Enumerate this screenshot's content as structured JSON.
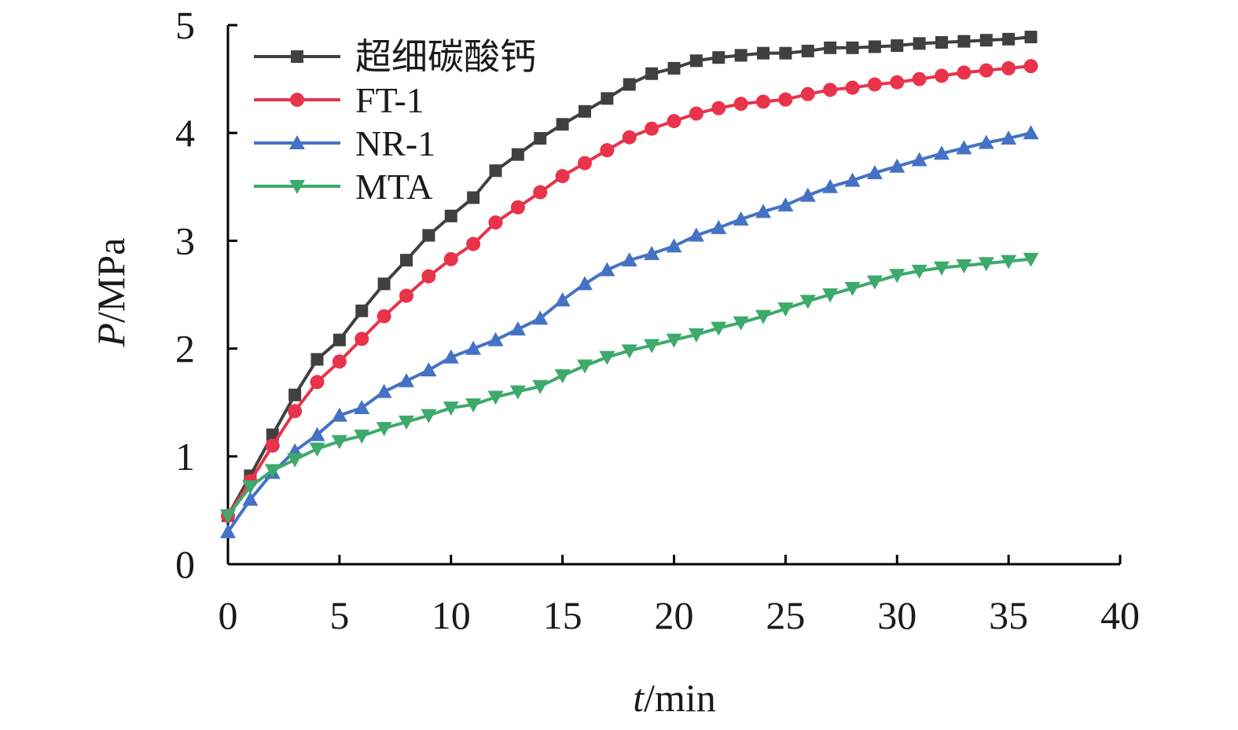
{
  "chart_data": {
    "type": "line",
    "xlabel": {
      "var": "t",
      "unit": "/min"
    },
    "ylabel": {
      "var": "P",
      "unit": "/MPa"
    },
    "xlim": [
      0,
      40
    ],
    "ylim": [
      0,
      5
    ],
    "xticks": [
      "0",
      "5",
      "10",
      "15",
      "20",
      "25",
      "30",
      "35",
      "40"
    ],
    "yticks": [
      "0",
      "1",
      "2",
      "3",
      "4",
      "5"
    ],
    "grid": false,
    "legend_position": "top-left",
    "x": [
      0,
      1,
      2,
      3,
      4,
      5,
      6,
      7,
      8,
      9,
      10,
      11,
      12,
      13,
      14,
      15,
      16,
      17,
      18,
      19,
      20,
      21,
      22,
      23,
      24,
      25,
      26,
      27,
      28,
      29,
      30,
      31,
      32,
      33,
      34,
      35,
      36
    ],
    "series": [
      {
        "name": "超细碳酸钙",
        "color": "#404040",
        "marker": "square",
        "values": [
          0.45,
          0.82,
          1.2,
          1.57,
          1.9,
          2.08,
          2.35,
          2.6,
          2.82,
          3.05,
          3.23,
          3.4,
          3.65,
          3.8,
          3.95,
          4.08,
          4.2,
          4.32,
          4.45,
          4.55,
          4.6,
          4.67,
          4.7,
          4.72,
          4.74,
          4.74,
          4.76,
          4.79,
          4.79,
          4.8,
          4.81,
          4.83,
          4.84,
          4.85,
          4.86,
          4.87,
          4.89
        ]
      },
      {
        "name": "FT-1",
        "color": "#e8334a",
        "marker": "circle",
        "values": [
          0.45,
          0.77,
          1.1,
          1.42,
          1.69,
          1.88,
          2.09,
          2.3,
          2.49,
          2.67,
          2.83,
          2.97,
          3.17,
          3.31,
          3.45,
          3.6,
          3.72,
          3.84,
          3.96,
          4.04,
          4.11,
          4.18,
          4.23,
          4.27,
          4.29,
          4.31,
          4.36,
          4.4,
          4.42,
          4.45,
          4.47,
          4.5,
          4.53,
          4.56,
          4.58,
          4.6,
          4.62
        ]
      },
      {
        "name": "NR-1",
        "color": "#4472c4",
        "marker": "triangle-up",
        "values": [
          0.3,
          0.6,
          0.85,
          1.05,
          1.2,
          1.38,
          1.45,
          1.6,
          1.7,
          1.8,
          1.92,
          2.0,
          2.08,
          2.18,
          2.28,
          2.45,
          2.6,
          2.73,
          2.82,
          2.88,
          2.95,
          3.05,
          3.12,
          3.2,
          3.27,
          3.33,
          3.42,
          3.5,
          3.56,
          3.63,
          3.69,
          3.75,
          3.81,
          3.86,
          3.91,
          3.95,
          4.0
        ]
      },
      {
        "name": "MTA",
        "color": "#3daa6b",
        "marker": "triangle-down",
        "values": [
          0.45,
          0.72,
          0.87,
          0.97,
          1.07,
          1.14,
          1.19,
          1.26,
          1.32,
          1.38,
          1.45,
          1.48,
          1.55,
          1.6,
          1.65,
          1.75,
          1.84,
          1.92,
          1.98,
          2.03,
          2.08,
          2.13,
          2.19,
          2.24,
          2.3,
          2.37,
          2.44,
          2.5,
          2.56,
          2.62,
          2.68,
          2.72,
          2.75,
          2.77,
          2.79,
          2.81,
          2.83
        ]
      }
    ]
  }
}
